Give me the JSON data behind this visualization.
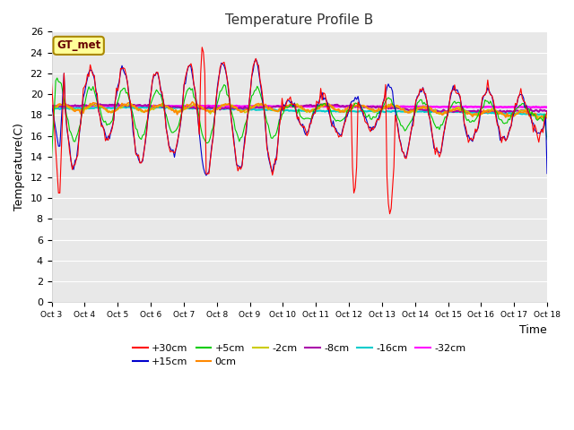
{
  "title": "Temperature Profile B",
  "xlabel": "Time",
  "ylabel": "Temperature(C)",
  "ylim": [
    0,
    26
  ],
  "yticks": [
    0,
    2,
    4,
    6,
    8,
    10,
    12,
    14,
    16,
    18,
    20,
    22,
    24,
    26
  ],
  "xlim": [
    0,
    15
  ],
  "xtick_labels": [
    "Oct 3",
    "Oct 4",
    "Oct 5",
    "Oct 6",
    "Oct 7",
    "Oct 8",
    "Oct 9",
    "Oct 10",
    "Oct 11",
    "Oct 12",
    "Oct 13",
    "Oct 14",
    "Oct 15",
    "Oct 16",
    "Oct 17",
    "Oct 18"
  ],
  "fig_bg_color": "#ffffff",
  "plot_bg_color": "#e8e8e8",
  "series_colors": {
    "+30cm": "#ff0000",
    "+15cm": "#0000cc",
    "+5cm": "#00cc00",
    "0cm": "#ff8800",
    "-2cm": "#cccc00",
    "-8cm": "#aa00aa",
    "-16cm": "#00cccc",
    "-32cm": "#ff00ff"
  },
  "legend_label": "GT_met",
  "legend_box_color": "#ffff99",
  "legend_box_edge": "#aa8800",
  "title_fontsize": 11,
  "axis_fontsize": 9,
  "tick_fontsize": 8
}
